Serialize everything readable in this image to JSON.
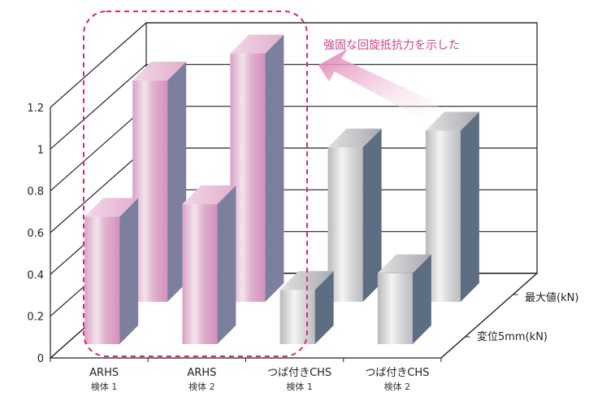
{
  "chart_data": {
    "type": "bar",
    "categories": [
      {
        "name": "ARHS",
        "sub": "検体 1"
      },
      {
        "name": "ARHS",
        "sub": "検体 2"
      },
      {
        "name": "つば付きCHS",
        "sub": "検体 1"
      },
      {
        "name": "つば付きCHS",
        "sub": "検体 2"
      }
    ],
    "series": [
      {
        "name": "変位5mm(kN)",
        "values": [
          0.61,
          0.67,
          0.26,
          0.34
        ]
      },
      {
        "name": "最大値(kN)",
        "values": [
          1.06,
          1.19,
          0.74,
          0.82
        ]
      }
    ],
    "ylim": [
      0,
      1.2
    ],
    "yticks": [
      "0",
      "0.2",
      "0.4",
      "0.6",
      "0.8",
      "1",
      "1.2"
    ],
    "grid": true,
    "annotation": "強固な回旋抵抗力を示した",
    "colors": {
      "highlight_front": "#e7b3cf",
      "highlight_side": "#7d7f9e",
      "normal_front": "#cfcfd0",
      "normal_side": "#5d6e82",
      "annotation": "#d4428a"
    }
  }
}
